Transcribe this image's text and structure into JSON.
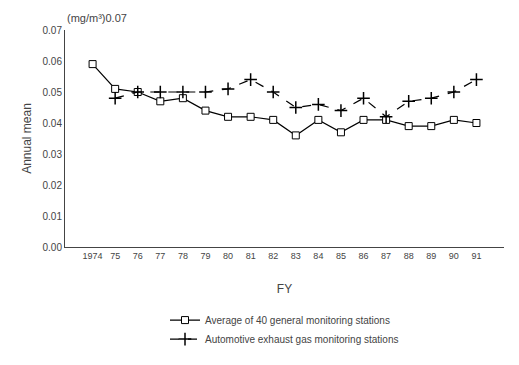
{
  "chart_data": {
    "type": "line",
    "categories": [
      "1974",
      "75",
      "76",
      "77",
      "78",
      "79",
      "80",
      "81",
      "82",
      "83",
      "84",
      "85",
      "86",
      "87",
      "88",
      "89",
      "90",
      "91"
    ],
    "series": [
      {
        "name": "Average of 40 general monitoring stations",
        "color": "#000000",
        "marker": "square",
        "line_style": "solid",
        "values": [
          0.059,
          0.051,
          0.05,
          0.047,
          0.048,
          0.044,
          0.042,
          0.042,
          0.041,
          0.036,
          0.041,
          0.037,
          0.041,
          0.041,
          0.039,
          0.039,
          0.041,
          0.04
        ]
      },
      {
        "name": "Automotive exhaust gas monitoring stations",
        "color": "#000000",
        "marker": "plus",
        "line_style": "dashed",
        "values": [
          null,
          0.048,
          0.05,
          0.05,
          0.05,
          0.05,
          0.051,
          0.054,
          0.05,
          0.045,
          0.046,
          0.044,
          0.048,
          0.042,
          0.047,
          0.048,
          0.05,
          0.054
        ]
      }
    ],
    "x_label": "FY",
    "y_label": "Annual mean",
    "annotations": [
      "(mg/m³)0.07"
    ],
    "ylim": [
      0,
      0.07
    ],
    "yticks": [
      {
        "value": 0,
        "label": "0.00"
      },
      0.01,
      0.02,
      0.03,
      0.04,
      0.05,
      0.06,
      0.07
    ],
    "grid": false,
    "legend": "bottom"
  }
}
